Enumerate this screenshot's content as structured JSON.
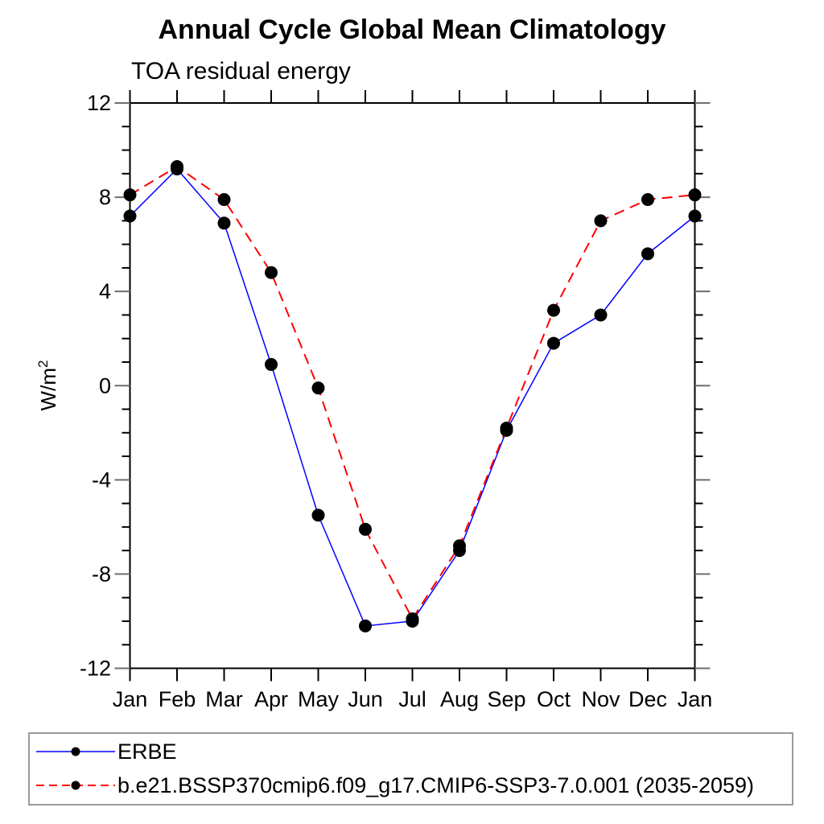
{
  "chart_data": {
    "type": "line",
    "title": "Annual Cycle Global Mean Climatology",
    "subtitle": "TOA residual energy",
    "ylabel_base": "W/m",
    "ylabel_sup": "2",
    "categories": [
      "Jan",
      "Feb",
      "Mar",
      "Apr",
      "May",
      "Jun",
      "Jul",
      "Aug",
      "Sep",
      "Oct",
      "Nov",
      "Dec",
      "Jan"
    ],
    "ylim": [
      -12,
      12
    ],
    "y_major_ticks": [
      -12,
      -8,
      -4,
      0,
      4,
      8,
      12
    ],
    "y_minor_tick_step": 1,
    "grid": "off",
    "legend_position": "bottom",
    "axis_color": "#000000",
    "marker_color": "#000000",
    "series": [
      {
        "name": "ERBE",
        "color": "#0000ff",
        "line_style": "solid",
        "marker": "circle",
        "values": [
          7.2,
          9.2,
          6.9,
          0.9,
          -5.5,
          -10.2,
          -10.0,
          -7.0,
          -1.9,
          1.8,
          3.0,
          5.6,
          7.2
        ]
      },
      {
        "name": "b.e21.BSSP370cmip6.f09_g17.CMIP6-SSP3-7.0.001 (2035-2059)",
        "color": "#ff0000",
        "line_style": "dashed",
        "marker": "circle",
        "values": [
          8.1,
          9.3,
          7.9,
          4.8,
          -0.1,
          -6.1,
          -9.9,
          -6.8,
          -1.8,
          3.2,
          7.0,
          7.9,
          8.1
        ]
      }
    ]
  }
}
